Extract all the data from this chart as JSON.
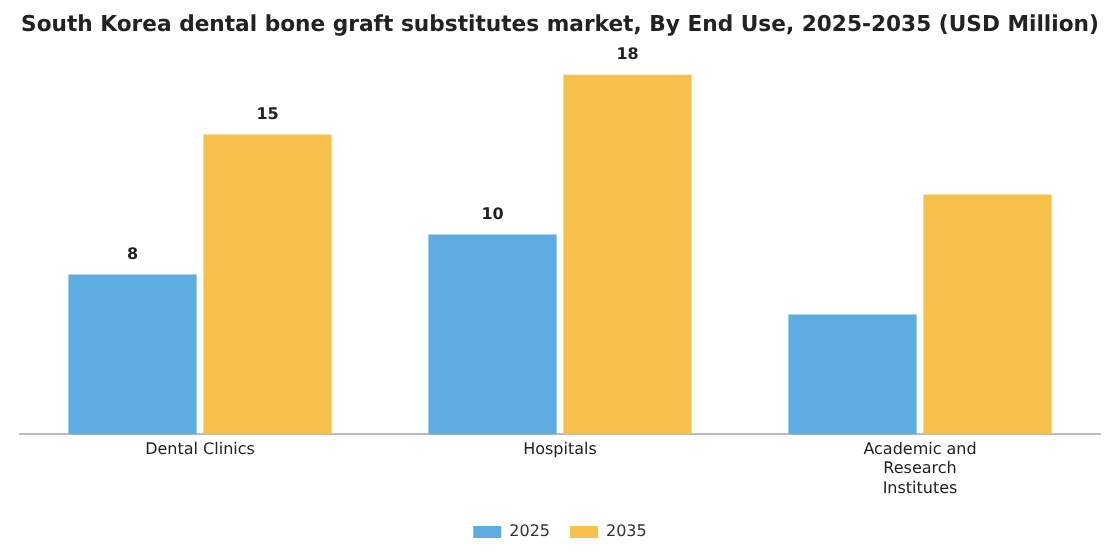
{
  "chart_data": {
    "type": "bar",
    "title": "South Korea dental bone graft substitutes market, By End Use, 2025-2035 (USD Million)",
    "categories": [
      "Dental Clinics",
      "Hospitals",
      "Academic and Research Institutes"
    ],
    "series": [
      {
        "name": "2025",
        "color": "#5dade2",
        "values": [
          8,
          10,
          6
        ],
        "value_labels": [
          "8",
          "10",
          null
        ]
      },
      {
        "name": "2035",
        "color": "#f7c04a",
        "values": [
          15,
          18,
          12
        ],
        "value_labels": [
          "15",
          "18",
          null
        ]
      }
    ],
    "legend": "bottom",
    "grid": false
  }
}
